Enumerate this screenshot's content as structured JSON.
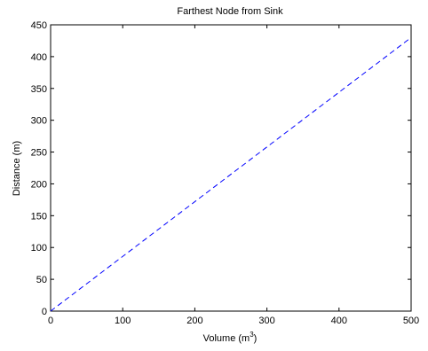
{
  "chart_data": {
    "type": "line",
    "title": "Farthest Node from Sink",
    "xlabel": "Volume (m",
    "xlabel_sup": "3",
    "xlabel_suffix": ")",
    "ylabel": "Distance (m)",
    "xlim": [
      0,
      500
    ],
    "ylim": [
      0,
      450
    ],
    "xticks": [
      0,
      100,
      200,
      300,
      400,
      500
    ],
    "yticks": [
      0,
      50,
      100,
      150,
      200,
      250,
      300,
      350,
      400,
      450
    ],
    "grid": false,
    "line_style": "dashed",
    "series": [
      {
        "color": "#0000ff",
        "x": [
          0,
          500
        ],
        "y": [
          0,
          430
        ]
      }
    ]
  }
}
